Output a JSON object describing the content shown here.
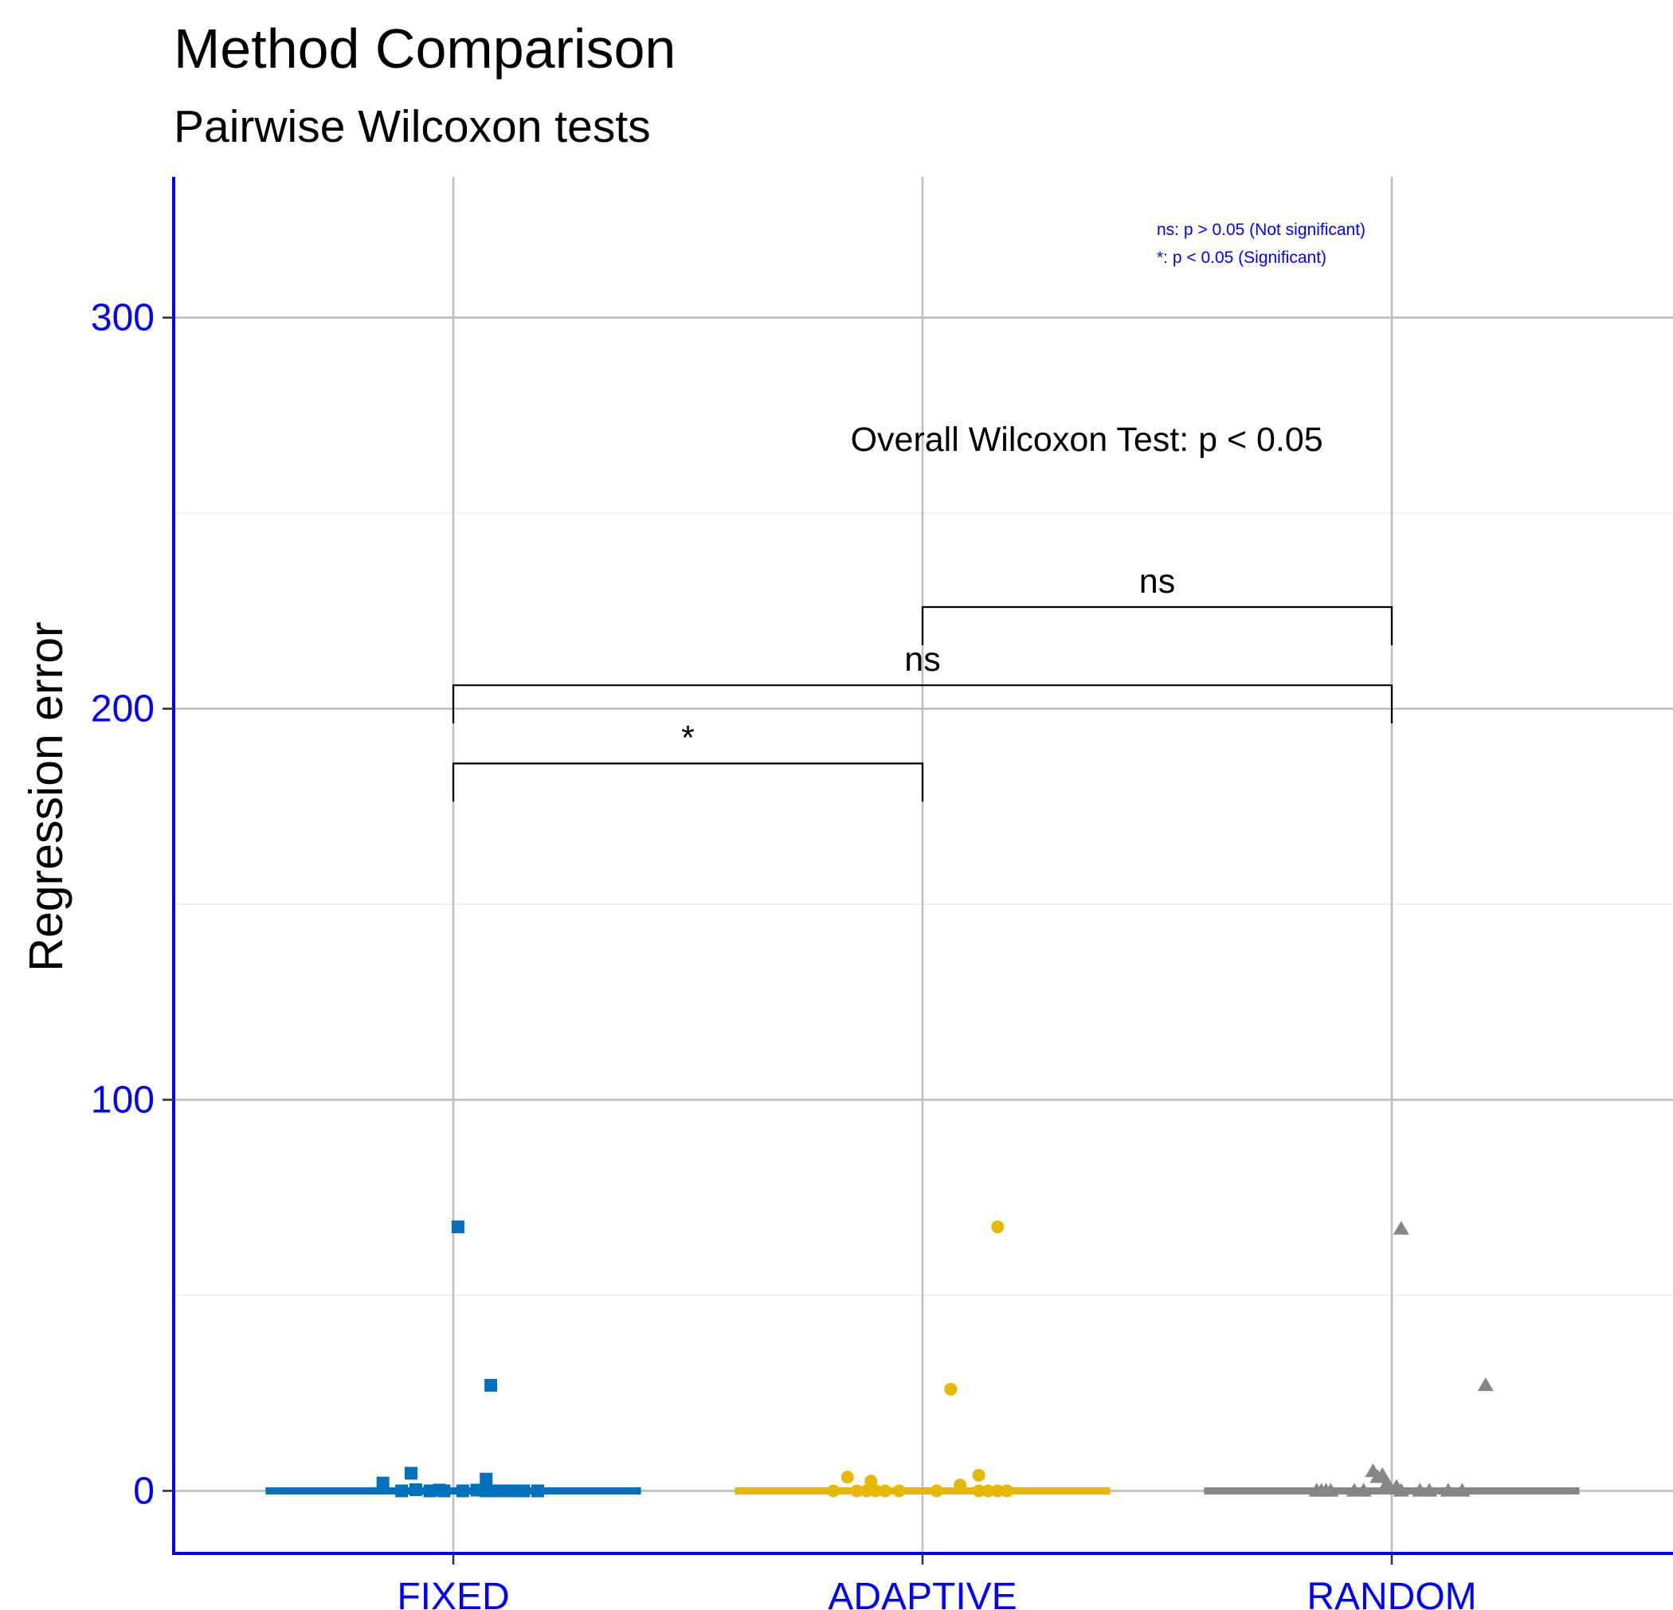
{
  "chart_data": {
    "type": "scatter",
    "title": "Method Comparison",
    "subtitle": "Pairwise Wilcoxon tests",
    "xlabel": "",
    "ylabel": "Regression error",
    "categories": [
      "FIXED",
      "ADAPTIVE",
      "RANDOM"
    ],
    "ylim": [
      -16,
      336
    ],
    "yticks": [
      0,
      100,
      200,
      300
    ],
    "grid": true,
    "axis_color": "#0000ff",
    "series": [
      {
        "category": "FIXED",
        "color": "#0072bd",
        "marker": "square",
        "median_line": 0,
        "points": [
          {
            "x": 0.01,
            "y": 67.5
          },
          {
            "x": 0.08,
            "y": 27
          },
          {
            "x": -0.15,
            "y": 2
          },
          {
            "x": -0.09,
            "y": 4.5
          },
          {
            "x": 0.07,
            "y": 3
          },
          {
            "x": -0.11,
            "y": 0
          },
          {
            "x": -0.08,
            "y": 0.3
          },
          {
            "x": -0.05,
            "y": 0
          },
          {
            "x": -0.03,
            "y": 0.2
          },
          {
            "x": -0.02,
            "y": 0
          },
          {
            "x": 0.02,
            "y": 0
          },
          {
            "x": 0.05,
            "y": 0.2
          },
          {
            "x": 0.07,
            "y": 0
          },
          {
            "x": 0.09,
            "y": 0
          },
          {
            "x": 0.11,
            "y": 0
          },
          {
            "x": 0.13,
            "y": 0
          },
          {
            "x": 0.15,
            "y": 0
          },
          {
            "x": 0.18,
            "y": 0
          }
        ]
      },
      {
        "category": "ADAPTIVE",
        "color": "#e7b800",
        "marker": "circle",
        "median_line": 0,
        "points": [
          {
            "x": 0.16,
            "y": 67.5
          },
          {
            "x": 0.06,
            "y": 26
          },
          {
            "x": -0.16,
            "y": 3.5
          },
          {
            "x": -0.11,
            "y": 2.5
          },
          {
            "x": 0.12,
            "y": 4
          },
          {
            "x": 0.08,
            "y": 1.5
          },
          {
            "x": -0.19,
            "y": 0
          },
          {
            "x": -0.14,
            "y": 0
          },
          {
            "x": -0.12,
            "y": 0
          },
          {
            "x": -0.1,
            "y": 0
          },
          {
            "x": -0.08,
            "y": 0
          },
          {
            "x": -0.05,
            "y": 0
          },
          {
            "x": 0.03,
            "y": 0
          },
          {
            "x": 0.12,
            "y": 0
          },
          {
            "x": 0.14,
            "y": 0
          },
          {
            "x": 0.16,
            "y": 0
          },
          {
            "x": 0.18,
            "y": 0
          }
        ]
      },
      {
        "category": "RANDOM",
        "color": "#868686",
        "marker": "triangle",
        "median_line": 0,
        "points": [
          {
            "x": 0.02,
            "y": 67
          },
          {
            "x": 0.2,
            "y": 27
          },
          {
            "x": -0.04,
            "y": 5
          },
          {
            "x": -0.03,
            "y": 3.5
          },
          {
            "x": -0.02,
            "y": 4
          },
          {
            "x": -0.01,
            "y": 2
          },
          {
            "x": -0.16,
            "y": 0
          },
          {
            "x": -0.15,
            "y": 0
          },
          {
            "x": -0.14,
            "y": 0
          },
          {
            "x": -0.13,
            "y": 0
          },
          {
            "x": -0.08,
            "y": 0
          },
          {
            "x": -0.06,
            "y": 0
          },
          {
            "x": 0.01,
            "y": 1
          },
          {
            "x": 0.02,
            "y": 0
          },
          {
            "x": 0.06,
            "y": 0
          },
          {
            "x": 0.08,
            "y": 0
          },
          {
            "x": 0.12,
            "y": 0
          },
          {
            "x": 0.15,
            "y": 0
          }
        ]
      }
    ],
    "brackets": [
      {
        "from": "FIXED",
        "to": "ADAPTIVE",
        "y": 186,
        "label": "*"
      },
      {
        "from": "FIXED",
        "to": "RANDOM",
        "y": 206,
        "label": "ns"
      },
      {
        "from": "ADAPTIVE",
        "to": "RANDOM",
        "y": 226,
        "label": "ns"
      }
    ],
    "annotations": [
      {
        "text": "Overall Wilcoxon Test: p < 0.05",
        "x": 1.35,
        "y": 269
      }
    ],
    "legend_note": {
      "lines": [
        "ns: p > 0.05 (Not significant)",
        "*: p < 0.05 (Significant)"
      ],
      "placement": "top-right",
      "color": "#0000ff"
    }
  }
}
